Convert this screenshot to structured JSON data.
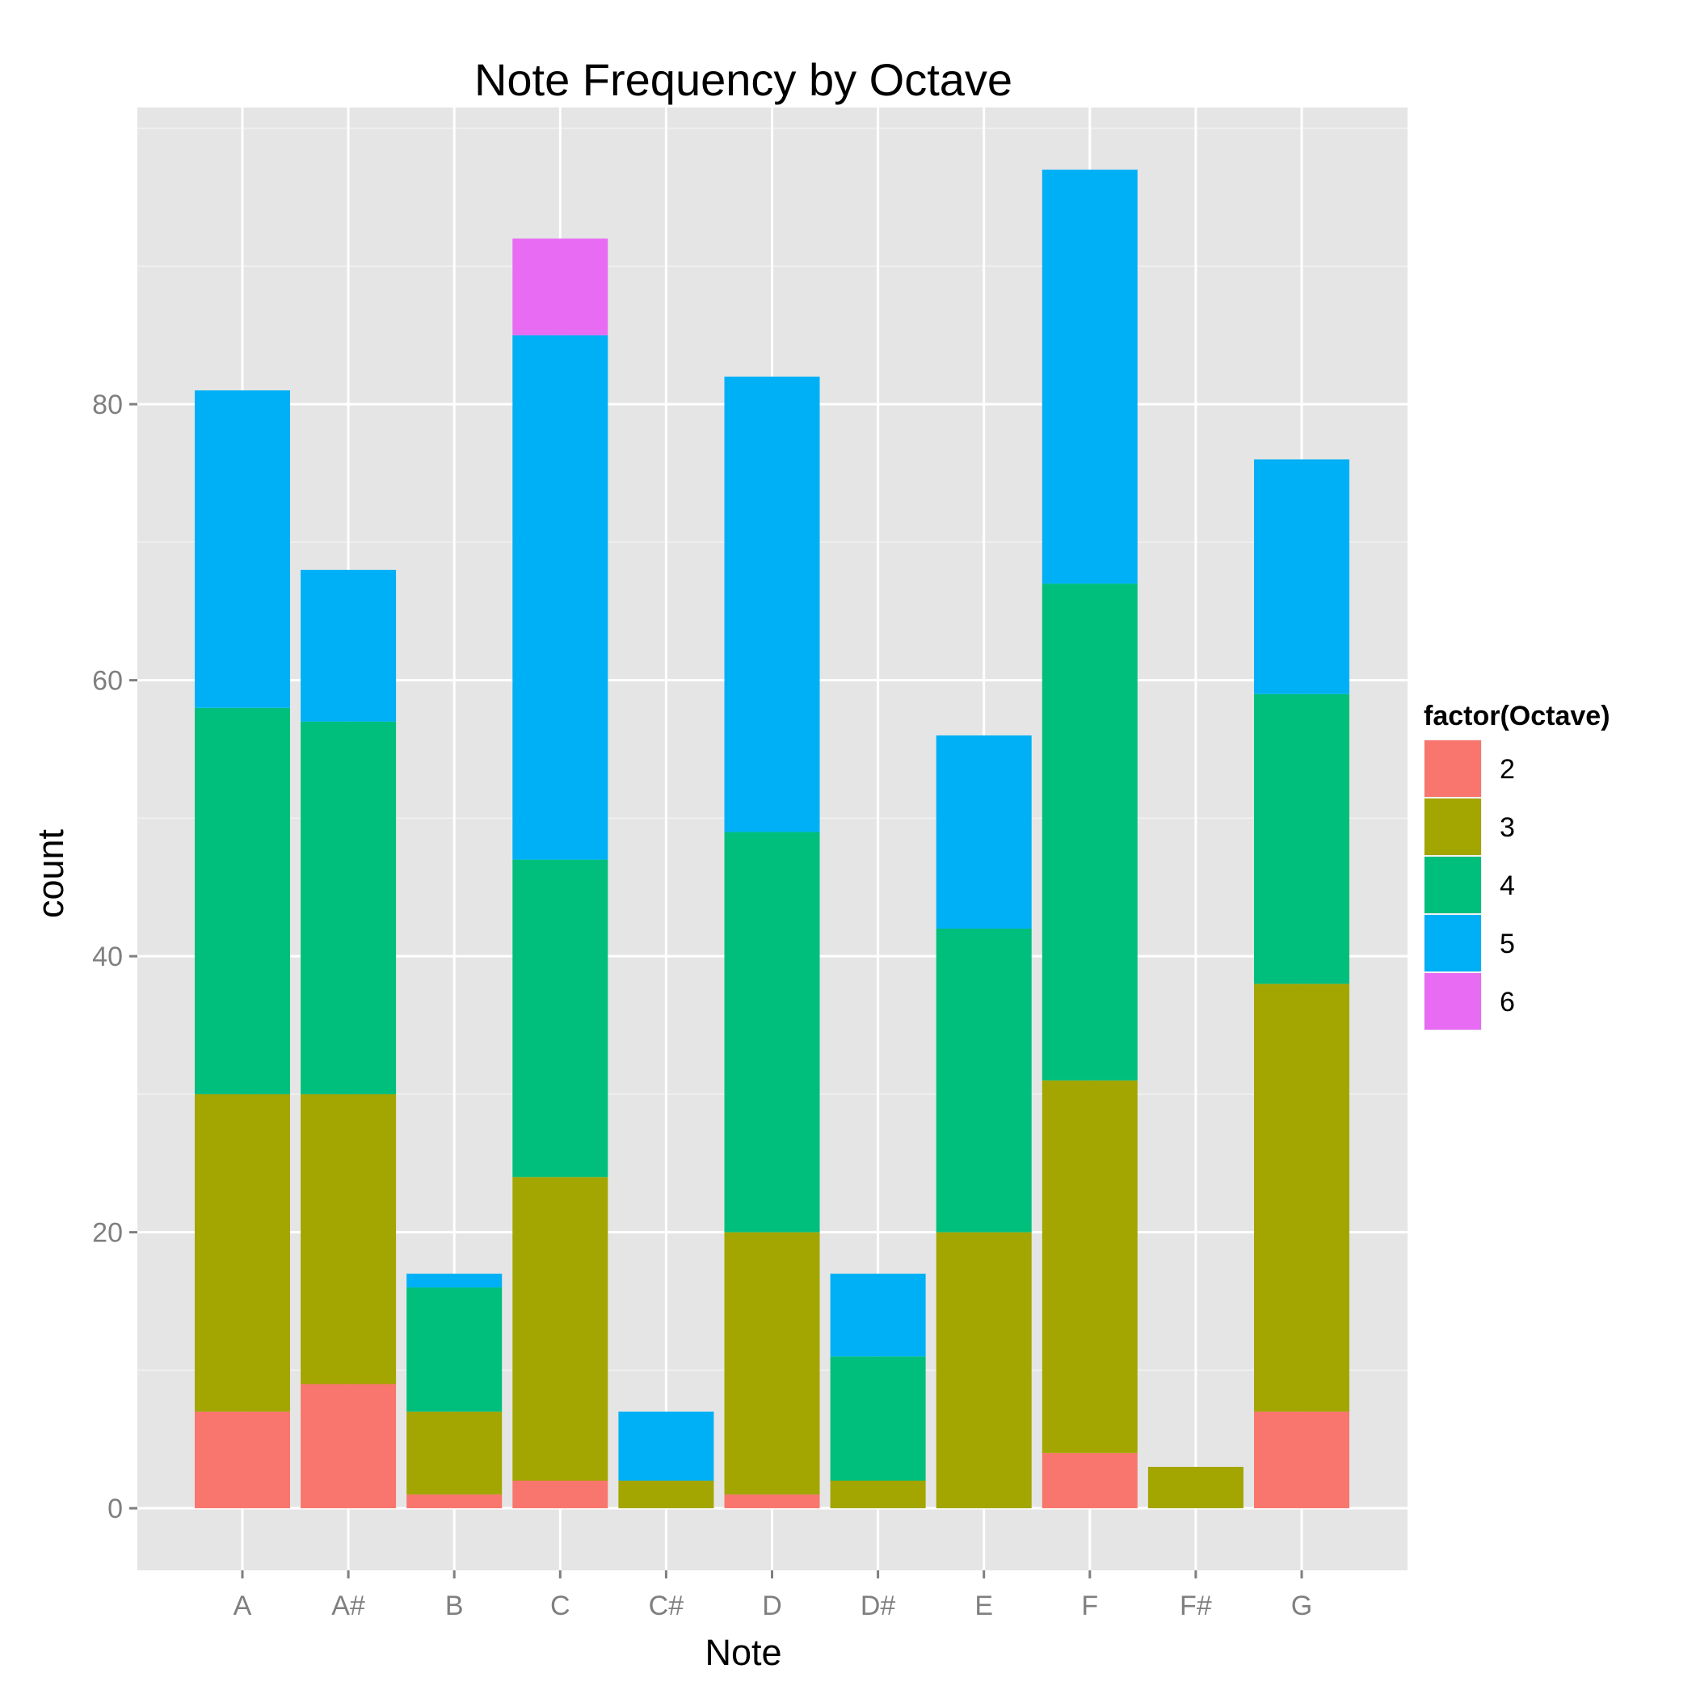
{
  "chart_data": {
    "type": "bar",
    "stacked": true,
    "title": "Note Frequency by Octave",
    "xlabel": "Note",
    "ylabel": "count",
    "categories": [
      "A",
      "A#",
      "B",
      "C",
      "C#",
      "D",
      "D#",
      "E",
      "F",
      "F#",
      "G"
    ],
    "ylim": [
      -4.5,
      101.5
    ],
    "yticks": [
      0,
      20,
      40,
      60,
      80
    ],
    "yticks_minor": [
      10,
      30,
      50,
      70,
      90,
      100
    ],
    "grid": true,
    "legend": {
      "title": "factor(Octave)",
      "position": "right"
    },
    "series": [
      {
        "name": "2",
        "color": "#F8766D",
        "values": [
          7,
          9,
          1,
          2,
          0,
          1,
          0,
          0,
          4,
          0,
          7
        ]
      },
      {
        "name": "3",
        "color": "#A3A500",
        "values": [
          23,
          21,
          6,
          22,
          2,
          19,
          2,
          20,
          27,
          3,
          31
        ]
      },
      {
        "name": "4",
        "color": "#00BF7D",
        "values": [
          28,
          27,
          9,
          23,
          0,
          29,
          9,
          22,
          36,
          0,
          21
        ]
      },
      {
        "name": "5",
        "color": "#00B0F6",
        "values": [
          23,
          11,
          1,
          38,
          5,
          33,
          6,
          14,
          30,
          0,
          17
        ]
      },
      {
        "name": "6",
        "color": "#E76BF3",
        "values": [
          0,
          0,
          0,
          7,
          0,
          0,
          0,
          0,
          0,
          0,
          0
        ]
      }
    ],
    "panel_background": "#E5E5E5",
    "grid_color": "#FFFFFF",
    "tick_label_color": "#7F7F7F"
  }
}
